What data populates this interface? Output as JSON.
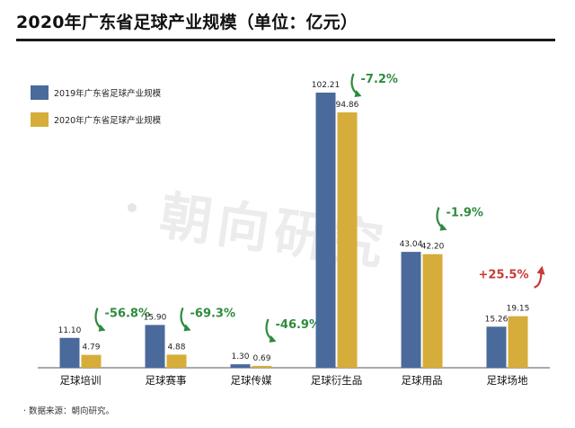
{
  "chart_data": {
    "type": "bar",
    "title": "2020年广东省足球产业规模（单位：亿元）",
    "categories": [
      "足球培训",
      "足球赛事",
      "足球传媒",
      "足球衍生品",
      "足球用品",
      "足球场地"
    ],
    "series": [
      {
        "name": "2019年广东省足球产业规模",
        "values": [
          11.1,
          15.9,
          1.3,
          102.21,
          43.04,
          15.26
        ],
        "labels": [
          "11.10",
          "15.90",
          "1.30",
          "102.21",
          "43.04",
          "15.26"
        ],
        "color": "#4a6a9b"
      },
      {
        "name": "2020年广东省足球产业规模",
        "values": [
          4.79,
          4.88,
          0.69,
          94.86,
          42.2,
          19.15
        ],
        "labels": [
          "4.79",
          "4.88",
          "0.69",
          "94.86",
          "42.20",
          "19.15"
        ],
        "color": "#d6ad3a"
      }
    ],
    "annotations": [
      {
        "category": "足球培训",
        "text": "-56.8%",
        "direction": "down",
        "color": "#2e8b3e"
      },
      {
        "category": "足球赛事",
        "text": "-69.3%",
        "direction": "down",
        "color": "#2e8b3e"
      },
      {
        "category": "足球传媒",
        "text": "-46.9%",
        "direction": "down",
        "color": "#2e8b3e"
      },
      {
        "category": "足球衍生品",
        "text": "-7.2%",
        "direction": "down",
        "color": "#2e8b3e"
      },
      {
        "category": "足球用品",
        "text": "-1.9%",
        "direction": "down",
        "color": "#2e8b3e"
      },
      {
        "category": "足球场地",
        "text": "+25.5%",
        "direction": "up",
        "color": "#c83a34"
      }
    ],
    "legend_position": "top-left",
    "ylim": [
      0,
      110
    ],
    "grid": false
  },
  "footer": {
    "source": "· 数据来源：朝向研究。"
  },
  "watermark": {
    "text": "朝向研究"
  }
}
